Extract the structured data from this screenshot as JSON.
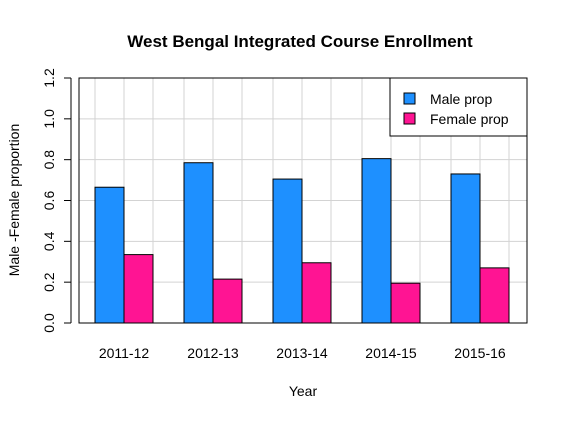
{
  "chart_data": {
    "type": "bar",
    "title": "West Bengal Integrated Course Enrollment",
    "xlabel": "Year",
    "ylabel": "Male -Female proportion",
    "categories": [
      "2011-12",
      "2012-13",
      "2013-14",
      "2014-15",
      "2015-16"
    ],
    "series": [
      {
        "name": "Male prop",
        "color": "#1E90FF",
        "values": [
          0.665,
          0.785,
          0.705,
          0.805,
          0.73
        ]
      },
      {
        "name": "Female prop",
        "color": "#FF1493",
        "values": [
          0.335,
          0.215,
          0.295,
          0.195,
          0.27
        ]
      }
    ],
    "ylim": [
      0,
      1.2
    ],
    "yticks": [
      "0.0",
      "0.2",
      "0.4",
      "0.6",
      "0.8",
      "1.0",
      "1.2"
    ],
    "grid": true,
    "legend_position": "top-right"
  }
}
